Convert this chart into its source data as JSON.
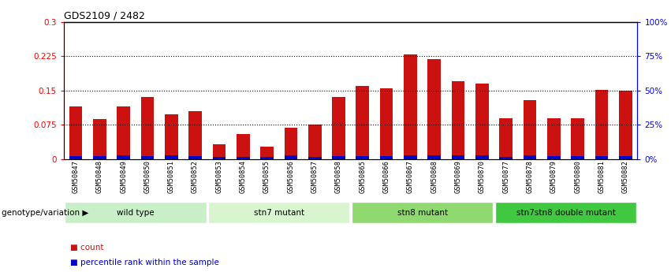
{
  "title": "GDS2109 / 2482",
  "samples": [
    "GSM50847",
    "GSM50848",
    "GSM50849",
    "GSM50850",
    "GSM50851",
    "GSM50852",
    "GSM50853",
    "GSM50854",
    "GSM50855",
    "GSM50856",
    "GSM50857",
    "GSM50858",
    "GSM50865",
    "GSM50866",
    "GSM50867",
    "GSM50868",
    "GSM50869",
    "GSM50870",
    "GSM50877",
    "GSM50878",
    "GSM50879",
    "GSM50880",
    "GSM50881",
    "GSM50882"
  ],
  "count_values": [
    0.115,
    0.088,
    0.115,
    0.135,
    0.098,
    0.105,
    0.033,
    0.055,
    0.028,
    0.068,
    0.075,
    0.135,
    0.16,
    0.155,
    0.228,
    0.218,
    0.17,
    0.165,
    0.09,
    0.128,
    0.09,
    0.09,
    0.152,
    0.15
  ],
  "percentile_values": [
    0.007,
    0.007,
    0.008,
    0.007,
    0.008,
    0.007,
    0.005,
    0.005,
    0.005,
    0.008,
    0.005,
    0.007,
    0.007,
    0.007,
    0.008,
    0.008,
    0.008,
    0.008,
    0.005,
    0.008,
    0.007,
    0.007,
    0.007,
    0.007
  ],
  "groups": [
    {
      "label": "wild type",
      "start": 0,
      "end": 6,
      "color": "#c8efc8"
    },
    {
      "label": "stn7 mutant",
      "start": 6,
      "end": 12,
      "color": "#d8f5d0"
    },
    {
      "label": "stn8 mutant",
      "start": 12,
      "end": 18,
      "color": "#90d870"
    },
    {
      "label": "stn7stn8 double mutant",
      "start": 18,
      "end": 24,
      "color": "#40c840"
    }
  ],
  "ylim_left": [
    0,
    0.3
  ],
  "ylim_right": [
    0,
    100
  ],
  "yticks_left": [
    0,
    0.075,
    0.15,
    0.225,
    0.3
  ],
  "yticks_right": [
    0,
    25,
    50,
    75,
    100
  ],
  "ytick_labels_left": [
    "0",
    "0.075",
    "0.15",
    "0.225",
    "0.3"
  ],
  "ytick_labels_right": [
    "0%",
    "25%",
    "50%",
    "75%",
    "100%"
  ],
  "hlines": [
    0.075,
    0.15,
    0.225
  ],
  "bar_width": 0.55,
  "count_color": "#cc1111",
  "percentile_color": "#0000cc",
  "xlabel_genotype": "genotype/variation",
  "legend_count": "count",
  "legend_percentile": "percentile rank within the sample",
  "bg_color": "#ffffff",
  "plot_bg": "#ffffff",
  "tick_label_area_color": "#d0d0d0"
}
